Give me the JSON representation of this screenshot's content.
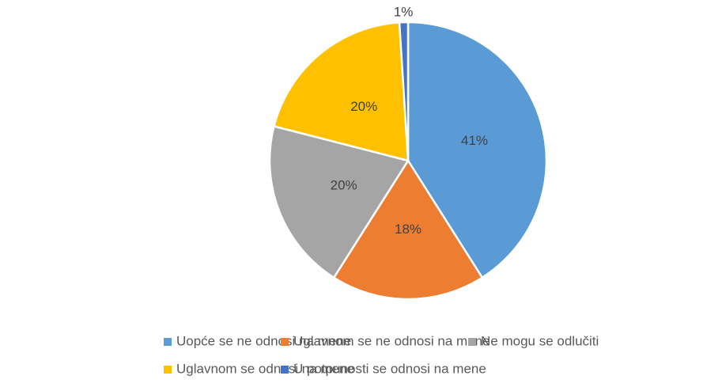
{
  "chart_data": {
    "type": "pie",
    "categories": [
      "Uopće se ne odnosi na mene",
      "Uglavnom se ne odnosi na mene",
      "Ne mogu se odlučiti",
      "Uglavnom se odnosi na mene",
      "U potpunosti se odnosi na mene"
    ],
    "values": [
      41,
      18,
      20,
      20,
      1
    ],
    "value_labels": [
      "41%",
      "18%",
      "20%",
      "20%",
      "1%"
    ],
    "colors": [
      "#5b9bd5",
      "#ed7d31",
      "#a5a5a5",
      "#ffc000",
      "#4472c4"
    ],
    "legend": "bottom"
  }
}
